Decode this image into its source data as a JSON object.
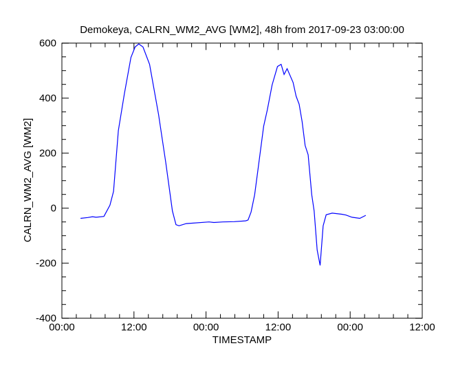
{
  "chart_data": {
    "type": "line",
    "title": "Demokeya, CALRN_WM2_AVG [WM2], 48h from  2017-09-23 03:00:00",
    "xlabel": "TIMESTAMP",
    "ylabel": "CALRN_WM2_AVG [WM2]",
    "x_units": "hours since axis start (00:00)",
    "xlim": [
      0,
      60
    ],
    "ylim": [
      -400,
      600
    ],
    "x_ticks": [
      0,
      12,
      24,
      36,
      48,
      60
    ],
    "x_tick_labels": [
      "00:00",
      "12:00",
      "00:00",
      "12:00",
      "00:00",
      "12:00"
    ],
    "y_ticks": [
      -400,
      -200,
      0,
      200,
      400,
      600
    ],
    "y_tick_labels": [
      "-400",
      "-200",
      "0",
      "200",
      "400",
      "600"
    ],
    "grid": false,
    "line_color": "#0000ff",
    "series": [
      {
        "name": "CALRN_WM2_AVG",
        "x": [
          3.1,
          4.3,
          5.1,
          5.7,
          7.0,
          8.0,
          8.6,
          9.4,
          10.4,
          11.5,
          12.2,
          12.8,
          13.5,
          14.6,
          16.1,
          17.3,
          18.4,
          19.0,
          19.5,
          20.7,
          24.5,
          25.3,
          26.8,
          28.7,
          30.6,
          31.0,
          31.5,
          32.1,
          32.7,
          33.6,
          34.2,
          35.0,
          35.9,
          36.5,
          37.0,
          37.5,
          38.5,
          39.0,
          39.5,
          40.0,
          40.5,
          41.0,
          41.6,
          42.0,
          42.5,
          43.0,
          43.5,
          44.0,
          45.0,
          46.6,
          47.3,
          48.3,
          49.6,
          50.6
        ],
        "y": [
          -37,
          -34,
          -31,
          -33,
          -30,
          11,
          61,
          282,
          415,
          548,
          586,
          597,
          586,
          523,
          340,
          165,
          -10,
          -60,
          -64,
          -56,
          -50,
          -52,
          -50,
          -49,
          -46,
          -43,
          -14,
          49,
          149,
          298,
          357,
          448,
          515,
          523,
          486,
          507,
          457,
          407,
          378,
          315,
          228,
          194,
          49,
          -10,
          -152,
          -208,
          -64,
          -24,
          -18,
          -22,
          -25,
          -33,
          -37,
          -26
        ]
      }
    ]
  }
}
